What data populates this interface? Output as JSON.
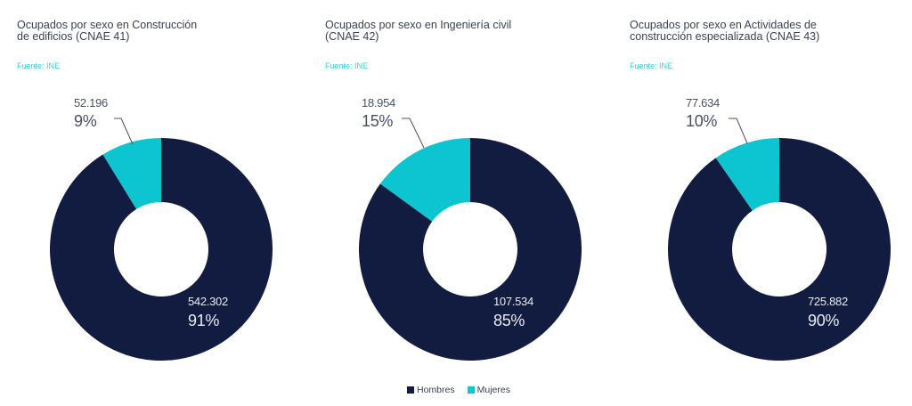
{
  "colors": {
    "hombres": "#121c40",
    "mujeres": "#0cc5d0",
    "title": "#3c4056",
    "source": "#2fd3de"
  },
  "legend": [
    {
      "label": "Hombres",
      "color": "#121c40"
    },
    {
      "label": "Mujeres",
      "color": "#0cc5d0"
    }
  ],
  "charts": [
    {
      "title": "Ocupados por sexo en Construcción\nde edificios (CNAE 41)",
      "source": "Fuente: INE",
      "mujeres": {
        "value": "52.196",
        "pct": "9%"
      },
      "hombres": {
        "value": "542.302",
        "pct": "91%"
      }
    },
    {
      "title": "Ocupados por sexo en Ingeniería civil\n(CNAE 42)",
      "source": "Fuente: INE",
      "mujeres": {
        "value": "18.954",
        "pct": "15%"
      },
      "hombres": {
        "value": "107.534",
        "pct": "85%"
      }
    },
    {
      "title": "Ocupados por sexo en Actividades de\nconstrucción especializada (CNAE 43)",
      "source": "Fuente: INE",
      "mujeres": {
        "value": "77.634",
        "pct": "10%"
      },
      "hombres": {
        "value": "725.882",
        "pct": "90%"
      }
    }
  ],
  "chart_data": [
    {
      "type": "pie",
      "title": "Ocupados por sexo en Construcción de edificios (CNAE 41)",
      "subtitle": "Fuente: INE",
      "categories": [
        "Hombres",
        "Mujeres"
      ],
      "values": [
        542302,
        52196
      ],
      "percentages": [
        91,
        9
      ],
      "donut": true,
      "legend_position": "bottom"
    },
    {
      "type": "pie",
      "title": "Ocupados por sexo en Ingeniería civil (CNAE 42)",
      "subtitle": "Fuente: INE",
      "categories": [
        "Hombres",
        "Mujeres"
      ],
      "values": [
        107534,
        18954
      ],
      "percentages": [
        85,
        15
      ],
      "donut": true,
      "legend_position": "bottom"
    },
    {
      "type": "pie",
      "title": "Ocupados por sexo en Actividades de construcción especializada (CNAE 43)",
      "subtitle": "Fuente: INE",
      "categories": [
        "Hombres",
        "Mujeres"
      ],
      "values": [
        725882,
        77634
      ],
      "percentages": [
        90,
        10
      ],
      "donut": true,
      "legend_position": "bottom"
    }
  ]
}
